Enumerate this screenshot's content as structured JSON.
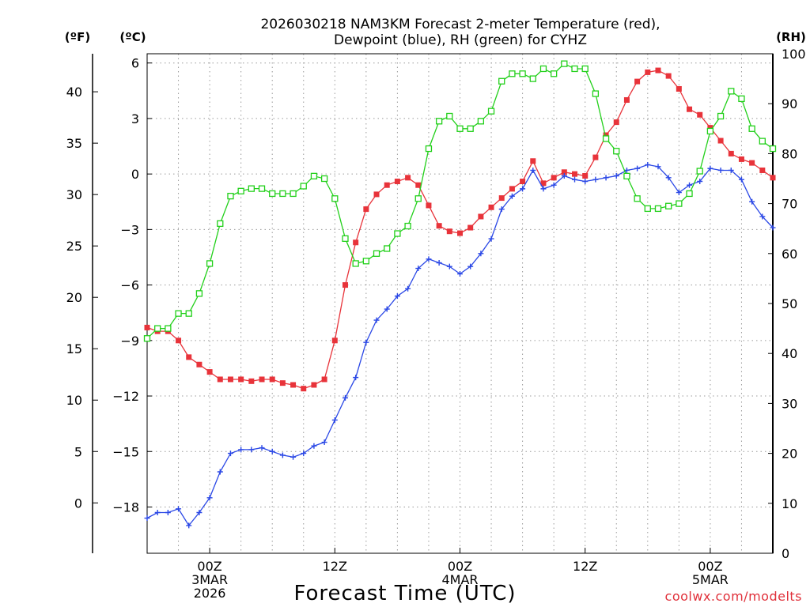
{
  "chart_data": {
    "type": "line",
    "title_line1": "2026030218 NAM3KM Forecast 2-meter Temperature (red),",
    "title_line2": "Dewpoint (blue), RH (green) for CYHZ",
    "xlabel": "Forecast Time (UTC)",
    "credit": "coolwx.com/modelts",
    "left_axis_f": {
      "unit": "(ºF)",
      "ticks": [
        0,
        5,
        10,
        15,
        20,
        25,
        30,
        35,
        40
      ]
    },
    "left_axis_c": {
      "unit": "(ºC)",
      "range": [
        -20.5,
        6.5
      ],
      "ticks": [
        -18,
        -15,
        -12,
        -9,
        -6,
        -3,
        0,
        3,
        6
      ],
      "tick_labels": [
        "−18",
        "−15",
        "−12",
        "−9",
        "−6",
        "−3",
        "0",
        "3",
        "6"
      ]
    },
    "right_axis": {
      "unit": "(RH)",
      "range": [
        0,
        100
      ],
      "ticks": [
        0,
        10,
        20,
        30,
        40,
        50,
        60,
        70,
        80,
        90,
        100
      ]
    },
    "x_axis": {
      "range": [
        0,
        60
      ],
      "ticks": [
        {
          "hour": 6,
          "lines": [
            "00Z",
            "3MAR",
            "2026"
          ]
        },
        {
          "hour": 18,
          "lines": [
            "12Z"
          ]
        },
        {
          "hour": 30,
          "lines": [
            "00Z",
            "4MAR"
          ]
        },
        {
          "hour": 42,
          "lines": [
            "12Z"
          ]
        },
        {
          "hour": 54,
          "lines": [
            "00Z",
            "5MAR"
          ]
        }
      ]
    },
    "series": [
      {
        "name": "2-meter Temperature",
        "color": "#e8333a",
        "marker": "filled-square",
        "axis": "celsius",
        "hours": [
          0,
          1,
          2,
          3,
          4,
          5,
          6,
          7,
          8,
          9,
          10,
          11,
          12,
          13,
          14,
          15,
          16,
          17,
          18,
          19,
          20,
          21,
          22,
          23,
          24,
          25,
          26,
          27,
          28,
          29,
          30,
          31,
          32,
          33,
          34,
          35,
          36,
          37,
          38,
          39,
          40,
          41,
          42,
          43,
          44,
          45,
          46,
          47,
          48,
          49,
          50,
          51,
          52,
          53,
          54,
          55,
          56,
          57,
          58,
          59,
          60
        ],
        "values": [
          -8.3,
          -8.5,
          -8.5,
          -9.0,
          -9.9,
          -10.3,
          -10.7,
          -11.1,
          -11.1,
          -11.1,
          -11.2,
          -11.1,
          -11.1,
          -11.3,
          -11.4,
          -11.6,
          -11.4,
          -11.1,
          -9.0,
          -6.0,
          -3.7,
          -1.9,
          -1.1,
          -0.6,
          -0.4,
          -0.2,
          -0.6,
          -1.7,
          -2.8,
          -3.1,
          -3.2,
          -2.9,
          -2.3,
          -1.8,
          -1.3,
          -0.8,
          -0.4,
          0.7,
          -0.5,
          -0.2,
          0.1,
          0.0,
          -0.1,
          0.9,
          2.1,
          2.8,
          4.0,
          5.0,
          5.5,
          5.6,
          5.3,
          4.6,
          3.5,
          3.2,
          2.5,
          1.8,
          1.1,
          0.8,
          0.6,
          0.2,
          -0.2
        ]
      },
      {
        "name": "Dewpoint",
        "color": "#2b48e6",
        "marker": "plus",
        "axis": "celsius",
        "hours": [
          0,
          1,
          2,
          3,
          4,
          5,
          6,
          7,
          8,
          9,
          10,
          11,
          12,
          13,
          14,
          15,
          16,
          17,
          18,
          19,
          20,
          21,
          22,
          23,
          24,
          25,
          26,
          27,
          28,
          29,
          30,
          31,
          32,
          33,
          34,
          35,
          36,
          37,
          38,
          39,
          40,
          41,
          42,
          43,
          44,
          45,
          46,
          47,
          48,
          49,
          50,
          51,
          52,
          53,
          54,
          55,
          56,
          57,
          58,
          59,
          60
        ],
        "values": [
          -18.6,
          -18.3,
          -18.3,
          -18.1,
          -19.0,
          -18.3,
          -17.5,
          -16.1,
          -15.1,
          -14.9,
          -14.9,
          -14.8,
          -15.0,
          -15.2,
          -15.3,
          -15.1,
          -14.7,
          -14.5,
          -13.3,
          -12.1,
          -11.0,
          -9.1,
          -7.9,
          -7.3,
          -6.6,
          -6.2,
          -5.1,
          -4.6,
          -4.8,
          -5.0,
          -5.4,
          -5.0,
          -4.3,
          -3.5,
          -1.9,
          -1.2,
          -0.8,
          0.2,
          -0.8,
          -0.6,
          -0.1,
          -0.3,
          -0.4,
          -0.3,
          -0.2,
          -0.1,
          0.2,
          0.3,
          0.5,
          0.4,
          -0.2,
          -1.0,
          -0.6,
          -0.4,
          0.3,
          0.2,
          0.2,
          -0.3,
          -1.5,
          -2.3,
          -2.9
        ]
      },
      {
        "name": "RH",
        "color": "#22d01a",
        "marker": "open-square",
        "axis": "rh",
        "hours": [
          0,
          1,
          2,
          3,
          4,
          5,
          6,
          7,
          8,
          9,
          10,
          11,
          12,
          13,
          14,
          15,
          16,
          17,
          18,
          19,
          20,
          21,
          22,
          23,
          24,
          25,
          26,
          27,
          28,
          29,
          30,
          31,
          32,
          33,
          34,
          35,
          36,
          37,
          38,
          39,
          40,
          41,
          42,
          43,
          44,
          45,
          46,
          47,
          48,
          49,
          50,
          51,
          52,
          53,
          54,
          55,
          56,
          57,
          58,
          59,
          60
        ],
        "values": [
          43,
          45,
          45,
          48,
          48,
          52,
          58,
          66,
          71.5,
          72.5,
          73,
          73,
          72,
          72,
          72,
          73.5,
          75.5,
          75,
          71,
          63,
          58,
          58.5,
          60,
          61,
          64,
          65.5,
          71,
          81,
          86.5,
          87.5,
          85,
          85,
          86.5,
          88.5,
          94.5,
          96,
          96,
          95,
          97,
          96,
          98,
          97,
          97,
          92,
          83,
          80.5,
          75.5,
          71,
          69,
          69,
          69.5,
          70,
          72,
          76.5,
          84.5,
          87.5,
          92.5,
          91,
          85,
          82.5,
          81
        ]
      }
    ]
  }
}
